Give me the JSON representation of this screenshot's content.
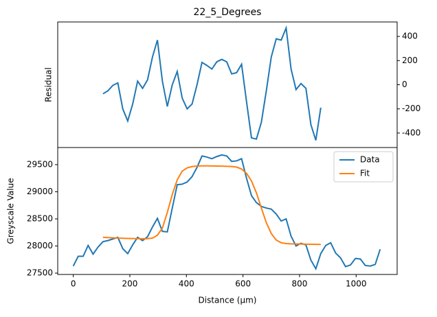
{
  "chart_data": [
    {
      "type": "line",
      "title": "22_5_Degrees",
      "ylabel": "Residual",
      "y_axis_side": "right",
      "xlim": [
        -55,
        1145
      ],
      "ylim": [
        -520,
        520
      ],
      "yticks": [
        -400,
        -200,
        0,
        200,
        400
      ],
      "series": [
        {
          "name": "Residual",
          "color": "#1f77b4",
          "x": [
            105,
            122.5,
            140,
            157.5,
            175,
            192.5,
            210,
            227.5,
            245,
            262.5,
            280,
            297.5,
            315,
            332.5,
            350,
            367.5,
            385,
            402.5,
            420,
            437.5,
            455,
            472.5,
            490,
            507.5,
            525,
            542.5,
            560,
            577.5,
            595,
            612.5,
            630,
            647.5,
            665,
            682.5,
            700,
            717.5,
            735,
            752.5,
            770,
            787.5,
            805,
            822.5,
            840,
            857.5,
            875
          ],
          "values": [
            -75,
            -50,
            -5,
            15,
            -200,
            -300,
            -160,
            30,
            -30,
            40,
            230,
            370,
            30,
            -180,
            0,
            110,
            -110,
            -200,
            -160,
            0,
            185,
            160,
            130,
            190,
            210,
            190,
            90,
            100,
            170,
            -140,
            -440,
            -450,
            -310,
            -50,
            230,
            380,
            370,
            470,
            130,
            -40,
            10,
            -30,
            -330,
            -460,
            -190
          ]
        }
      ]
    },
    {
      "type": "line",
      "xlabel": "Distance (μm)",
      "ylabel": "Greyscale Value",
      "y_axis_side": "left",
      "xlim": [
        -55,
        1145
      ],
      "ylim": [
        27475,
        29816
      ],
      "xticks": [
        0,
        200,
        400,
        600,
        800,
        1000
      ],
      "yticks": [
        27500,
        28000,
        28500,
        29000,
        29500
      ],
      "legend": "upper right",
      "series": [
        {
          "name": "Data",
          "color": "#1f77b4",
          "x": [
            0,
            17.5,
            35,
            52.5,
            70,
            87.5,
            105,
            122.5,
            140,
            157.5,
            175,
            192.5,
            210,
            227.5,
            245,
            262.5,
            280,
            297.5,
            315,
            332.5,
            350,
            367.5,
            385,
            402.5,
            420,
            437.5,
            455,
            472.5,
            490,
            507.5,
            525,
            542.5,
            560,
            577.5,
            595,
            612.5,
            630,
            647.5,
            665,
            682.5,
            700,
            717.5,
            735,
            752.5,
            770,
            787.5,
            805,
            822.5,
            840,
            857.5,
            875,
            892.5,
            910,
            927.5,
            945,
            962.5,
            980,
            997.5,
            1015,
            1032.5,
            1050,
            1067.5,
            1085
          ],
          "values": [
            27630,
            27810,
            27810,
            28010,
            27850,
            27980,
            28080,
            28100,
            28130,
            28160,
            27950,
            27860,
            28020,
            28160,
            28100,
            28170,
            28350,
            28510,
            28270,
            28260,
            28700,
            29130,
            29140,
            29180,
            29280,
            29450,
            29660,
            29640,
            29610,
            29650,
            29680,
            29660,
            29560,
            29570,
            29610,
            29250,
            28930,
            28800,
            28730,
            28700,
            28680,
            28590,
            28460,
            28500,
            28180,
            28000,
            28050,
            28020,
            27740,
            27580,
            27860,
            28010,
            28060,
            27870,
            27780,
            27620,
            27650,
            27770,
            27760,
            27640,
            27630,
            27660,
            27940
          ]
        },
        {
          "name": "Fit",
          "color": "#ff7f0e",
          "x": [
            105,
            122.5,
            140,
            157.5,
            175,
            192.5,
            210,
            227.5,
            245,
            262.5,
            280,
            297.5,
            315,
            332.5,
            350,
            367.5,
            385,
            402.5,
            420,
            437.5,
            455,
            472.5,
            490,
            507.5,
            525,
            542.5,
            560,
            577.5,
            595,
            612.5,
            630,
            647.5,
            665,
            682.5,
            700,
            717.5,
            735,
            752.5,
            770,
            787.5,
            805,
            822.5,
            840,
            857.5,
            875
          ],
          "values": [
            28160,
            28155,
            28150,
            28145,
            28143,
            28140,
            28138,
            28135,
            28135,
            28135,
            28145,
            28200,
            28330,
            28620,
            28950,
            29220,
            29380,
            29440,
            29465,
            29475,
            29478,
            29478,
            29476,
            29474,
            29472,
            29470,
            29466,
            29455,
            29420,
            29340,
            29200,
            28980,
            28700,
            28430,
            28230,
            28110,
            28060,
            28045,
            28040,
            28038,
            28036,
            28034,
            28032,
            28030,
            28028
          ]
        }
      ]
    }
  ]
}
